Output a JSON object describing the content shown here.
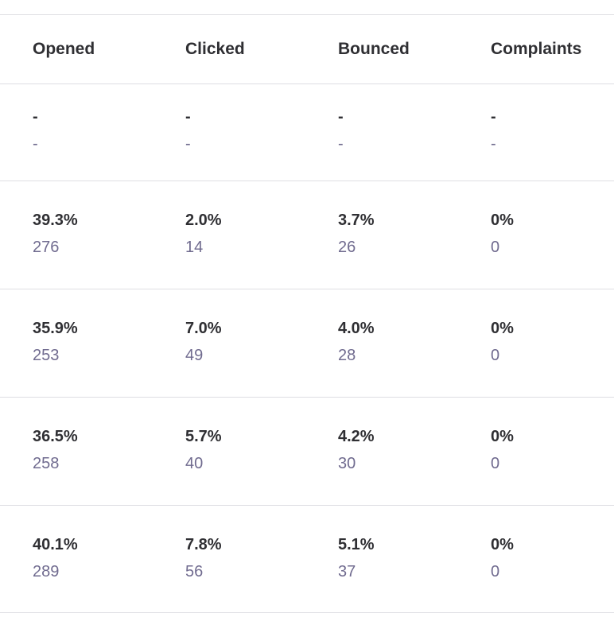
{
  "columns": [
    "Opened",
    "Clicked",
    "Bounced",
    "Complaints"
  ],
  "rows": [
    [
      {
        "pct": "-",
        "count": "-"
      },
      {
        "pct": "-",
        "count": "-"
      },
      {
        "pct": "-",
        "count": "-"
      },
      {
        "pct": "-",
        "count": "-"
      }
    ],
    [
      {
        "pct": "39.3%",
        "count": "276"
      },
      {
        "pct": "2.0%",
        "count": "14"
      },
      {
        "pct": "3.7%",
        "count": "26"
      },
      {
        "pct": "0%",
        "count": "0"
      }
    ],
    [
      {
        "pct": "35.9%",
        "count": "253"
      },
      {
        "pct": "7.0%",
        "count": "49"
      },
      {
        "pct": "4.0%",
        "count": "28"
      },
      {
        "pct": "0%",
        "count": "0"
      }
    ],
    [
      {
        "pct": "36.5%",
        "count": "258"
      },
      {
        "pct": "5.7%",
        "count": "40"
      },
      {
        "pct": "4.2%",
        "count": "30"
      },
      {
        "pct": "0%",
        "count": "0"
      }
    ],
    [
      {
        "pct": "40.1%",
        "count": "289"
      },
      {
        "pct": "7.8%",
        "count": "56"
      },
      {
        "pct": "5.1%",
        "count": "37"
      },
      {
        "pct": "0%",
        "count": "0"
      }
    ]
  ]
}
